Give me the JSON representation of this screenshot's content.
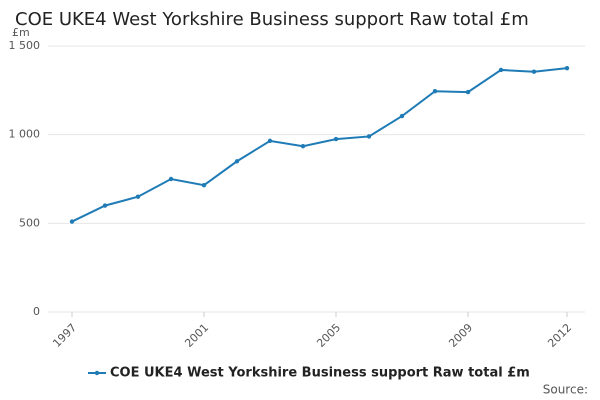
{
  "chart_data": {
    "type": "line",
    "title": "COE UKE4 West Yorkshire Business support Raw total £m",
    "y_label": "£m",
    "source": "Source:",
    "x": [
      1997,
      1998,
      1999,
      2000,
      2001,
      2002,
      2003,
      2004,
      2005,
      2006,
      2007,
      2008,
      2009,
      2010,
      2011,
      2012
    ],
    "series": [
      {
        "name": "COE UKE4 West Yorkshire Business support Raw total £m",
        "color": "#1f7bb6",
        "values": [
          510,
          600,
          650,
          750,
          715,
          850,
          965,
          935,
          975,
          990,
          1105,
          1245,
          1240,
          1365,
          1355,
          1375
        ]
      }
    ],
    "xlim": [
      1997,
      2012
    ],
    "xticks": [
      1997,
      2001,
      2005,
      2009,
      2012
    ],
    "ylim": [
      0,
      1500
    ],
    "yticks": [
      0,
      500,
      {
        "value": 1000,
        "label": "1 000"
      },
      {
        "value": 1500,
        "label": "1 500"
      }
    ],
    "grid": true
  }
}
